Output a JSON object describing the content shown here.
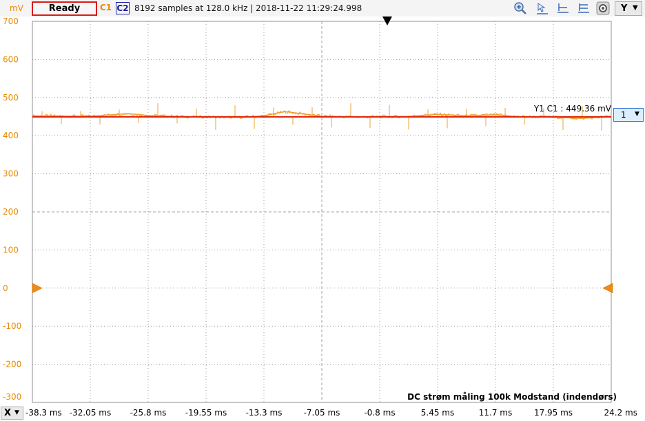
{
  "toolbar": {
    "unit": "mV",
    "ready_label": "Ready",
    "channel1_label": "C1",
    "channel2_label": "C2",
    "status": "8192 samples at 128.0 kHz | 2018-11-22 11:29:24.998",
    "y_menu_label": "Y",
    "icons": [
      "zoom-icon",
      "cursor-top-icon",
      "cursor-mid-icon",
      "cursor-bottom-icon",
      "settings-icon"
    ]
  },
  "x_menu_label": "X",
  "channel_selector_value": "1",
  "cursor_readout": "Y1 C1 : 449.36 mV",
  "plot_title": "DC strøm måling 100k Modstand (indendørs)",
  "colors": {
    "channel1": "#f0a030",
    "cursor": "#e02000",
    "channel2": "#1a1aa0",
    "grid": "#a0a0a0",
    "axis_label": "#e88a00"
  },
  "chart_data": {
    "type": "line",
    "title": "DC strøm måling 100k Modstand (indendørs)",
    "ylabel": "mV",
    "ylim": [
      -300,
      700
    ],
    "y_ticks": [
      "700",
      "600",
      "500",
      "400",
      "300",
      "200",
      "100",
      "0",
      "-100",
      "-200",
      "-300"
    ],
    "x_ticks": [
      "-38.3 ms",
      "-32.05 ms",
      "-25.8 ms",
      "-19.55 ms",
      "-13.3 ms",
      "-7.05 ms",
      "-0.8 ms",
      "5.45 ms",
      "11.7 ms",
      "17.95 ms",
      "24.2 ms"
    ],
    "xlim": [
      -38.3,
      24.2
    ],
    "cursor_y1": 449.36,
    "series": [
      {
        "name": "C1",
        "x": [
          -38.3,
          -32.05,
          -28.0,
          -25.8,
          -22.0,
          -19.55,
          -16.0,
          -13.3,
          -11.0,
          -7.05,
          -3.0,
          -0.8,
          2.0,
          5.45,
          8.5,
          11.7,
          14.0,
          17.95,
          21.0,
          24.2
        ],
        "values": [
          452,
          451,
          458,
          453,
          450,
          449,
          448,
          452,
          463,
          451,
          449,
          450,
          450,
          456,
          452,
          455,
          450,
          449,
          445,
          451
        ]
      }
    ]
  }
}
